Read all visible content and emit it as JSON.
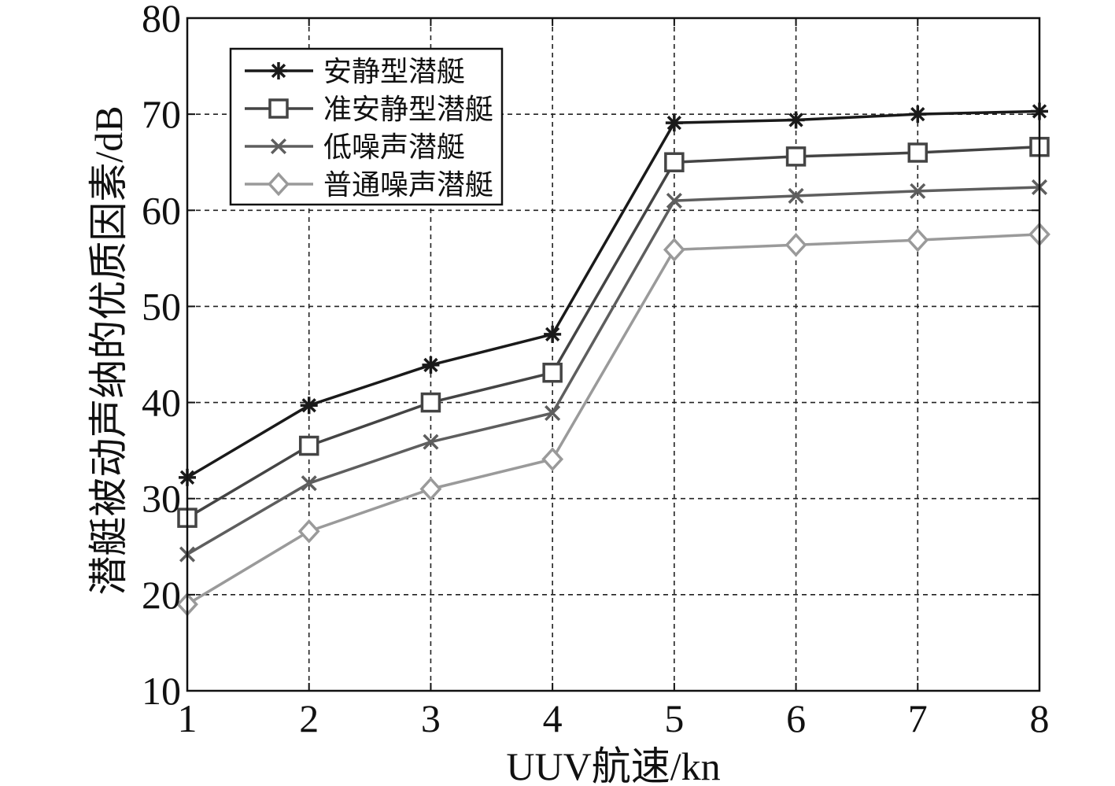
{
  "chart_data": {
    "type": "line",
    "title": "",
    "xlabel": "UUV航速/kn",
    "ylabel": "潜艇被动声纳的优质因素/dB",
    "x": [
      1,
      2,
      3,
      4,
      5,
      6,
      7,
      8
    ],
    "xlim": [
      1,
      8
    ],
    "ylim": [
      10,
      80
    ],
    "xticks": [
      "1",
      "2",
      "3",
      "4",
      "5",
      "6",
      "7",
      "8"
    ],
    "yticks": [
      "10",
      "20",
      "30",
      "40",
      "50",
      "60",
      "70",
      "80"
    ],
    "grid": true,
    "legend_position": "top-left",
    "series": [
      {
        "name": "安静型潜艇",
        "marker": "asterisk",
        "color": "#1a1a1a",
        "values": [
          32.2,
          39.7,
          43.9,
          47.1,
          69.1,
          69.4,
          70.0,
          70.3
        ]
      },
      {
        "name": "准安静型潜艇",
        "marker": "square",
        "color": "#444444",
        "values": [
          28.0,
          35.5,
          40.0,
          43.1,
          65.0,
          65.6,
          66.0,
          66.6
        ]
      },
      {
        "name": "低噪声潜艇",
        "marker": "x",
        "color": "#5e5e5e",
        "values": [
          24.2,
          31.6,
          35.9,
          38.9,
          61.0,
          61.5,
          62.0,
          62.4
        ]
      },
      {
        "name": "普通噪声潜艇",
        "marker": "diamond",
        "color": "#9a9a9a",
        "values": [
          19.0,
          26.6,
          31.0,
          34.1,
          55.9,
          56.4,
          56.9,
          57.5
        ]
      }
    ]
  }
}
